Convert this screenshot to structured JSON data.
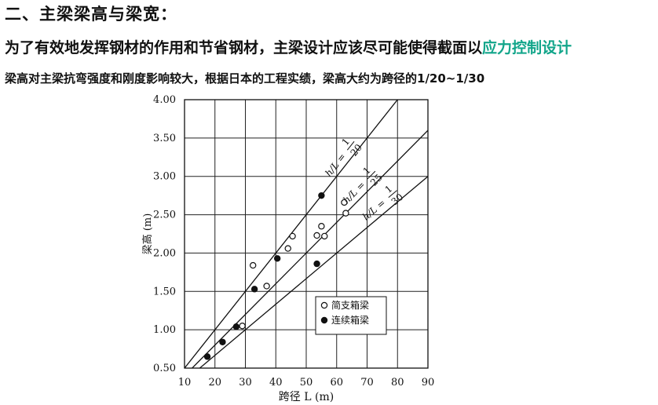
{
  "heading": "二、主梁梁高与梁宽：",
  "line2": {
    "prefix": "为了有效地发挥钢材的作用和节省钢材，主梁设计应该尽可能使得截面以",
    "highlight": "应力控制设计",
    "highlight_color": "#11a58a"
  },
  "line3": "梁高对主梁抗弯强度和刚度影响较大，根据日本的工程实绩，梁高大约为跨径的1/20~1/30",
  "chart_data": {
    "type": "scatter",
    "title": "",
    "xlabel": "跨径 L (m)",
    "ylabel": "梁高 (m)",
    "xlim": [
      10,
      90
    ],
    "ylim": [
      0.5,
      4.0
    ],
    "x_ticks": [
      "10",
      "20",
      "30",
      "40",
      "50",
      "60",
      "70",
      "80",
      "90"
    ],
    "y_ticks": [
      "0.50",
      "1.00",
      "1.50",
      "2.00",
      "2.50",
      "3.00",
      "3.50",
      "4.00"
    ],
    "grid": true,
    "legend_position": "bottom-right",
    "series": [
      {
        "name": "简支箱梁",
        "marker": "open-circle",
        "points": [
          [
            29,
            1.05
          ],
          [
            32.5,
            1.84
          ],
          [
            37,
            1.57
          ],
          [
            44,
            2.06
          ],
          [
            45.5,
            2.22
          ],
          [
            53.5,
            2.23
          ],
          [
            55,
            2.35
          ],
          [
            56,
            2.22
          ],
          [
            62.5,
            2.66
          ],
          [
            63,
            2.52
          ]
        ]
      },
      {
        "name": "连续箱梁",
        "marker": "filled-circle",
        "points": [
          [
            17.5,
            0.65
          ],
          [
            22.5,
            0.84
          ],
          [
            27,
            1.04
          ],
          [
            33,
            1.53
          ],
          [
            40.5,
            1.93
          ],
          [
            53.5,
            1.86
          ],
          [
            55,
            2.75
          ]
        ]
      }
    ],
    "reference_lines": [
      {
        "label_prefix": "h/L =",
        "num": "1",
        "den": "20",
        "ratio": 0.05
      },
      {
        "label_prefix": "h/L =",
        "num": "1",
        "den": "25",
        "ratio": 0.04
      },
      {
        "label_prefix": "h/L =",
        "num": "1",
        "den": "30",
        "ratio": 0.0333333
      }
    ]
  }
}
